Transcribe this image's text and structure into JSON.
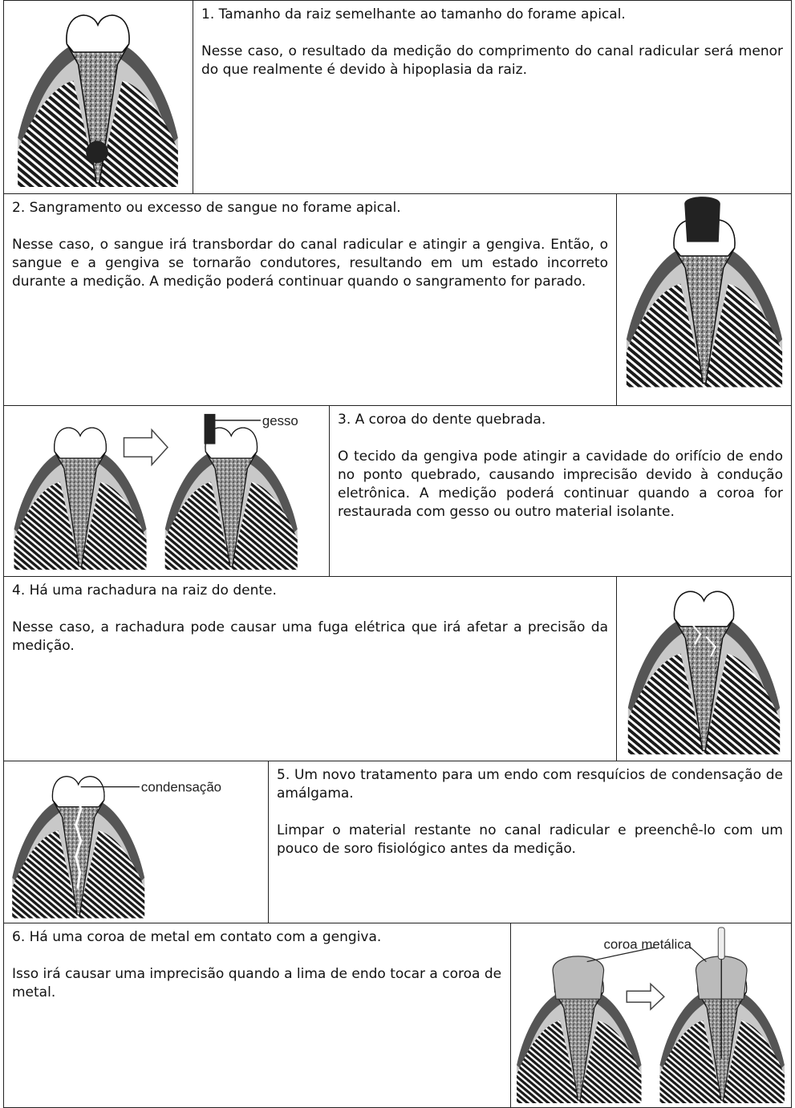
{
  "rows": [
    {
      "title": "1. Tamanho da raiz semelhante ao tamanho do forame apical.",
      "body": "Nesse caso, o resultado da medição do comprimento do canal radicular será menor do que realmente é devido à hipoplasia da raiz."
    },
    {
      "title": "2. Sangramento ou excesso de sangue no forame apical.",
      "body": "Nesse caso, o sangue irá transbordar do canal radicular e atingir a gengiva. Então, o sangue e a gengiva se tornarão condutores, resultando em um estado incorreto durante a medição. A medição poderá continuar quando o sangramento for parado."
    },
    {
      "title": "3. A coroa do dente quebrada.",
      "body": "O tecido da gengiva pode atingir a cavidade do orifício de endo no ponto quebrado, causando imprecisão devido à condução eletrônica. A medição poderá continuar quando a coroa for restaurada com gesso ou outro material isolante.",
      "image_label": "gesso"
    },
    {
      "title": "4. Há uma rachadura na raiz do dente.",
      "body": "Nesse caso, a rachadura pode causar uma fuga elétrica que irá afetar a precisão da medição."
    },
    {
      "title": "5. Um novo tratamento para um endo com resquícios de condensação de amálgama.",
      "body": "Limpar o material restante no canal radicular e preenchê-lo com um pouco de soro fisiológico antes da medição.",
      "image_label": "condensação"
    },
    {
      "title": "6. Há uma coroa de metal em contato com a gengiva.",
      "body": "Isso irá causar uma imprecisão quando a lima de endo tocar a coroa de metal.",
      "image_label": "coroa metálica"
    }
  ]
}
